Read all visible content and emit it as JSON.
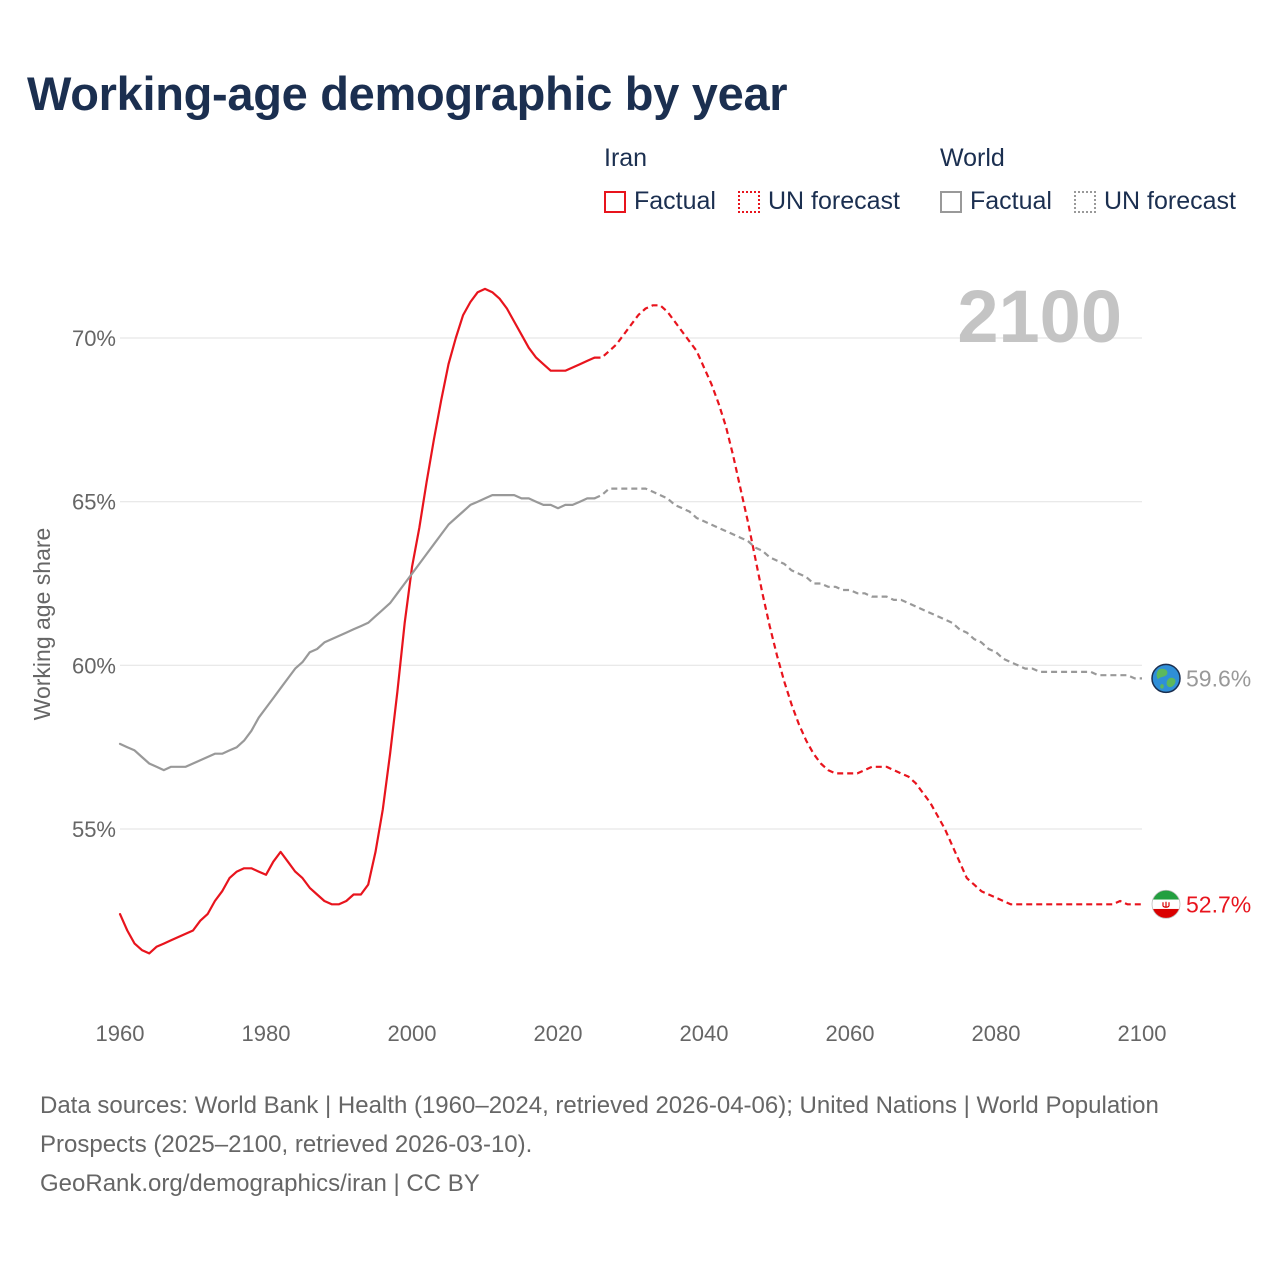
{
  "title": "Working-age demographic by year",
  "legend": {
    "groups": [
      {
        "name": "Iran",
        "color": "#e8141d",
        "items": [
          {
            "label": "Factual",
            "style": "solid"
          },
          {
            "label": "UN forecast",
            "style": "dotted"
          }
        ]
      },
      {
        "name": "World",
        "color": "#999999",
        "items": [
          {
            "label": "Factual",
            "style": "solid"
          },
          {
            "label": "UN forecast",
            "style": "dotted"
          }
        ]
      }
    ]
  },
  "current_year": "2100",
  "end_labels": {
    "world": "59.6%",
    "iran": "52.7%"
  },
  "footer": {
    "sources": "Data sources: World Bank | Health (1960–2024, retrieved 2026-04-06); United Nations | World Population Prospects (2025–2100, retrieved 2026-03-10).",
    "credit": "GeoRank.org/demographics/iran | CC BY"
  },
  "colors": {
    "iran": "#e8141d",
    "world": "#999999",
    "grid": "#e6e6e6",
    "title": "#1b2f50"
  },
  "icons": {
    "world": "globe-icon",
    "iran": "iran-flag-icon"
  },
  "chart_data": {
    "type": "line",
    "title": "Working-age demographic by year",
    "xlabel": "",
    "ylabel": "Working age share",
    "xlim": [
      1960,
      2100
    ],
    "ylim": [
      49.8,
      74
    ],
    "xticks": [
      1960,
      1980,
      2000,
      2020,
      2040,
      2060,
      2080,
      2100
    ],
    "yticks": [
      55,
      60,
      65,
      70
    ],
    "ytick_labels": [
      "55%",
      "60%",
      "65%",
      "70%"
    ],
    "grid": true,
    "legend_position": "top-right",
    "series": [
      {
        "name": "Iran",
        "part": "Factual",
        "style": "solid",
        "color": "#e8141d",
        "points": [
          [
            1960,
            52.4
          ],
          [
            1961,
            51.9
          ],
          [
            1962,
            51.5
          ],
          [
            1963,
            51.3
          ],
          [
            1964,
            51.2
          ],
          [
            1965,
            51.4
          ],
          [
            1966,
            51.5
          ],
          [
            1967,
            51.6
          ],
          [
            1968,
            51.7
          ],
          [
            1969,
            51.8
          ],
          [
            1970,
            51.9
          ],
          [
            1971,
            52.2
          ],
          [
            1972,
            52.4
          ],
          [
            1973,
            52.8
          ],
          [
            1974,
            53.1
          ],
          [
            1975,
            53.5
          ],
          [
            1976,
            53.7
          ],
          [
            1977,
            53.8
          ],
          [
            1978,
            53.8
          ],
          [
            1979,
            53.7
          ],
          [
            1980,
            53.6
          ],
          [
            1981,
            54.0
          ],
          [
            1982,
            54.3
          ],
          [
            1983,
            54.0
          ],
          [
            1984,
            53.7
          ],
          [
            1985,
            53.5
          ],
          [
            1986,
            53.2
          ],
          [
            1987,
            53.0
          ],
          [
            1988,
            52.8
          ],
          [
            1989,
            52.7
          ],
          [
            1990,
            52.7
          ],
          [
            1991,
            52.8
          ],
          [
            1992,
            53.0
          ],
          [
            1993,
            53.0
          ],
          [
            1994,
            53.3
          ],
          [
            1995,
            54.3
          ],
          [
            1996,
            55.6
          ],
          [
            1997,
            57.3
          ],
          [
            1998,
            59.2
          ],
          [
            1999,
            61.3
          ],
          [
            2000,
            63.0
          ],
          [
            2001,
            64.2
          ],
          [
            2002,
            65.6
          ],
          [
            2003,
            66.9
          ],
          [
            2004,
            68.1
          ],
          [
            2005,
            69.2
          ],
          [
            2006,
            70.0
          ],
          [
            2007,
            70.7
          ],
          [
            2008,
            71.1
          ],
          [
            2009,
            71.4
          ],
          [
            2010,
            71.5
          ],
          [
            2011,
            71.4
          ],
          [
            2012,
            71.2
          ],
          [
            2013,
            70.9
          ],
          [
            2014,
            70.5
          ],
          [
            2015,
            70.1
          ],
          [
            2016,
            69.7
          ],
          [
            2017,
            69.4
          ],
          [
            2018,
            69.2
          ],
          [
            2019,
            69.0
          ],
          [
            2020,
            69.0
          ],
          [
            2021,
            69.0
          ],
          [
            2022,
            69.1
          ],
          [
            2023,
            69.2
          ],
          [
            2024,
            69.3
          ],
          [
            2025,
            69.4
          ]
        ]
      },
      {
        "name": "Iran",
        "part": "UN forecast",
        "style": "dotted",
        "color": "#e8141d",
        "points": [
          [
            2025,
            69.4
          ],
          [
            2026,
            69.4
          ],
          [
            2027,
            69.6
          ],
          [
            2028,
            69.8
          ],
          [
            2029,
            70.1
          ],
          [
            2030,
            70.4
          ],
          [
            2031,
            70.7
          ],
          [
            2032,
            70.9
          ],
          [
            2033,
            71.0
          ],
          [
            2034,
            71.0
          ],
          [
            2035,
            70.8
          ],
          [
            2036,
            70.5
          ],
          [
            2037,
            70.2
          ],
          [
            2038,
            69.9
          ],
          [
            2039,
            69.6
          ],
          [
            2040,
            69.1
          ],
          [
            2041,
            68.6
          ],
          [
            2042,
            68.0
          ],
          [
            2043,
            67.3
          ],
          [
            2044,
            66.4
          ],
          [
            2045,
            65.4
          ],
          [
            2046,
            64.4
          ],
          [
            2047,
            63.3
          ],
          [
            2048,
            62.2
          ],
          [
            2049,
            61.2
          ],
          [
            2050,
            60.3
          ],
          [
            2051,
            59.5
          ],
          [
            2052,
            58.8
          ],
          [
            2053,
            58.2
          ],
          [
            2054,
            57.7
          ],
          [
            2055,
            57.3
          ],
          [
            2056,
            57.0
          ],
          [
            2057,
            56.8
          ],
          [
            2058,
            56.7
          ],
          [
            2059,
            56.7
          ],
          [
            2060,
            56.7
          ],
          [
            2061,
            56.7
          ],
          [
            2062,
            56.8
          ],
          [
            2063,
            56.9
          ],
          [
            2064,
            56.9
          ],
          [
            2065,
            56.9
          ],
          [
            2066,
            56.8
          ],
          [
            2067,
            56.7
          ],
          [
            2068,
            56.6
          ],
          [
            2069,
            56.4
          ],
          [
            2070,
            56.1
          ],
          [
            2071,
            55.8
          ],
          [
            2072,
            55.4
          ],
          [
            2073,
            55.0
          ],
          [
            2074,
            54.5
          ],
          [
            2075,
            54.0
          ],
          [
            2076,
            53.5
          ],
          [
            2077,
            53.3
          ],
          [
            2078,
            53.1
          ],
          [
            2079,
            53.0
          ],
          [
            2080,
            52.9
          ],
          [
            2081,
            52.8
          ],
          [
            2082,
            52.7
          ],
          [
            2083,
            52.7
          ],
          [
            2084,
            52.7
          ],
          [
            2085,
            52.7
          ],
          [
            2086,
            52.7
          ],
          [
            2087,
            52.7
          ],
          [
            2088,
            52.7
          ],
          [
            2089,
            52.7
          ],
          [
            2090,
            52.7
          ],
          [
            2091,
            52.7
          ],
          [
            2092,
            52.7
          ],
          [
            2093,
            52.7
          ],
          [
            2094,
            52.7
          ],
          [
            2095,
            52.7
          ],
          [
            2096,
            52.7
          ],
          [
            2097,
            52.8
          ],
          [
            2098,
            52.7
          ],
          [
            2099,
            52.7
          ],
          [
            2100,
            52.7
          ]
        ]
      },
      {
        "name": "World",
        "part": "Factual",
        "style": "solid",
        "color": "#999999",
        "points": [
          [
            1960,
            57.6
          ],
          [
            1961,
            57.5
          ],
          [
            1962,
            57.4
          ],
          [
            1963,
            57.2
          ],
          [
            1964,
            57.0
          ],
          [
            1965,
            56.9
          ],
          [
            1966,
            56.8
          ],
          [
            1967,
            56.9
          ],
          [
            1968,
            56.9
          ],
          [
            1969,
            56.9
          ],
          [
            1970,
            57.0
          ],
          [
            1971,
            57.1
          ],
          [
            1972,
            57.2
          ],
          [
            1973,
            57.3
          ],
          [
            1974,
            57.3
          ],
          [
            1975,
            57.4
          ],
          [
            1976,
            57.5
          ],
          [
            1977,
            57.7
          ],
          [
            1978,
            58.0
          ],
          [
            1979,
            58.4
          ],
          [
            1980,
            58.7
          ],
          [
            1981,
            59.0
          ],
          [
            1982,
            59.3
          ],
          [
            1983,
            59.6
          ],
          [
            1984,
            59.9
          ],
          [
            1985,
            60.1
          ],
          [
            1986,
            60.4
          ],
          [
            1987,
            60.5
          ],
          [
            1988,
            60.7
          ],
          [
            1989,
            60.8
          ],
          [
            1990,
            60.9
          ],
          [
            1991,
            61.0
          ],
          [
            1992,
            61.1
          ],
          [
            1993,
            61.2
          ],
          [
            1994,
            61.3
          ],
          [
            1995,
            61.5
          ],
          [
            1996,
            61.7
          ],
          [
            1997,
            61.9
          ],
          [
            1998,
            62.2
          ],
          [
            1999,
            62.5
          ],
          [
            2000,
            62.8
          ],
          [
            2001,
            63.1
          ],
          [
            2002,
            63.4
          ],
          [
            2003,
            63.7
          ],
          [
            2004,
            64.0
          ],
          [
            2005,
            64.3
          ],
          [
            2006,
            64.5
          ],
          [
            2007,
            64.7
          ],
          [
            2008,
            64.9
          ],
          [
            2009,
            65.0
          ],
          [
            2010,
            65.1
          ],
          [
            2011,
            65.2
          ],
          [
            2012,
            65.2
          ],
          [
            2013,
            65.2
          ],
          [
            2014,
            65.2
          ],
          [
            2015,
            65.1
          ],
          [
            2016,
            65.1
          ],
          [
            2017,
            65.0
          ],
          [
            2018,
            64.9
          ],
          [
            2019,
            64.9
          ],
          [
            2020,
            64.8
          ],
          [
            2021,
            64.9
          ],
          [
            2022,
            64.9
          ],
          [
            2023,
            65.0
          ],
          [
            2024,
            65.1
          ],
          [
            2025,
            65.1
          ]
        ]
      },
      {
        "name": "World",
        "part": "UN forecast",
        "style": "dotted",
        "color": "#999999",
        "points": [
          [
            2025,
            65.1
          ],
          [
            2026,
            65.2
          ],
          [
            2027,
            65.4
          ],
          [
            2028,
            65.4
          ],
          [
            2029,
            65.4
          ],
          [
            2030,
            65.4
          ],
          [
            2031,
            65.4
          ],
          [
            2032,
            65.4
          ],
          [
            2033,
            65.3
          ],
          [
            2034,
            65.2
          ],
          [
            2035,
            65.1
          ],
          [
            2036,
            64.9
          ],
          [
            2037,
            64.8
          ],
          [
            2038,
            64.7
          ],
          [
            2039,
            64.5
          ],
          [
            2040,
            64.4
          ],
          [
            2041,
            64.3
          ],
          [
            2042,
            64.2
          ],
          [
            2043,
            64.1
          ],
          [
            2044,
            64.0
          ],
          [
            2045,
            63.9
          ],
          [
            2046,
            63.8
          ],
          [
            2047,
            63.6
          ],
          [
            2048,
            63.5
          ],
          [
            2049,
            63.3
          ],
          [
            2050,
            63.2
          ],
          [
            2051,
            63.1
          ],
          [
            2052,
            62.9
          ],
          [
            2053,
            62.8
          ],
          [
            2054,
            62.7
          ],
          [
            2055,
            62.5
          ],
          [
            2056,
            62.5
          ],
          [
            2057,
            62.4
          ],
          [
            2058,
            62.4
          ],
          [
            2059,
            62.3
          ],
          [
            2060,
            62.3
          ],
          [
            2061,
            62.2
          ],
          [
            2062,
            62.2
          ],
          [
            2063,
            62.1
          ],
          [
            2064,
            62.1
          ],
          [
            2065,
            62.1
          ],
          [
            2066,
            62.0
          ],
          [
            2067,
            62.0
          ],
          [
            2068,
            61.9
          ],
          [
            2069,
            61.8
          ],
          [
            2070,
            61.7
          ],
          [
            2071,
            61.6
          ],
          [
            2072,
            61.5
          ],
          [
            2073,
            61.4
          ],
          [
            2074,
            61.3
          ],
          [
            2075,
            61.1
          ],
          [
            2076,
            61.0
          ],
          [
            2077,
            60.8
          ],
          [
            2078,
            60.7
          ],
          [
            2079,
            60.5
          ],
          [
            2080,
            60.4
          ],
          [
            2081,
            60.2
          ],
          [
            2082,
            60.1
          ],
          [
            2083,
            60.0
          ],
          [
            2084,
            59.9
          ],
          [
            2085,
            59.9
          ],
          [
            2086,
            59.8
          ],
          [
            2087,
            59.8
          ],
          [
            2088,
            59.8
          ],
          [
            2089,
            59.8
          ],
          [
            2090,
            59.8
          ],
          [
            2091,
            59.8
          ],
          [
            2092,
            59.8
          ],
          [
            2093,
            59.8
          ],
          [
            2094,
            59.7
          ],
          [
            2095,
            59.7
          ],
          [
            2096,
            59.7
          ],
          [
            2097,
            59.7
          ],
          [
            2098,
            59.7
          ],
          [
            2099,
            59.6
          ],
          [
            2100,
            59.6
          ]
        ]
      }
    ]
  }
}
